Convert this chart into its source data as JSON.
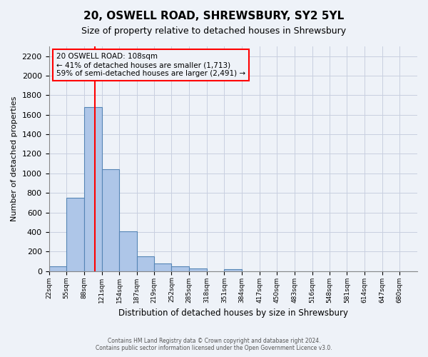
{
  "title": "20, OSWELL ROAD, SHREWSBURY, SY2 5YL",
  "subtitle": "Size of property relative to detached houses in Shrewsbury",
  "xlabel": "Distribution of detached houses by size in Shrewsbury",
  "ylabel": "Number of detached properties",
  "bin_labels": [
    "22sqm",
    "55sqm",
    "88sqm",
    "121sqm",
    "154sqm",
    "187sqm",
    "219sqm",
    "252sqm",
    "285sqm",
    "318sqm",
    "351sqm",
    "384sqm",
    "417sqm",
    "450sqm",
    "483sqm",
    "516sqm",
    "548sqm",
    "581sqm",
    "614sqm",
    "647sqm",
    "680sqm"
  ],
  "bar_heights": [
    50,
    750,
    1680,
    1040,
    405,
    150,
    80,
    45,
    30,
    0,
    20,
    0,
    0,
    0,
    0,
    0,
    0,
    0,
    0,
    0,
    0
  ],
  "bar_color": "#aec6e8",
  "bar_edge_color": "#5585b5",
  "ylim": [
    0,
    2300
  ],
  "yticks": [
    0,
    200,
    400,
    600,
    800,
    1000,
    1200,
    1400,
    1600,
    1800,
    2000,
    2200
  ],
  "property_size": 108,
  "pct_smaller": 41,
  "pct_smaller_count": 1713,
  "pct_larger": 59,
  "pct_larger_count": 2491,
  "red_line_x": 108,
  "bin_edges": [
    22,
    55,
    88,
    121,
    154,
    187,
    219,
    252,
    285,
    318,
    351,
    384,
    417,
    450,
    483,
    516,
    548,
    581,
    614,
    647,
    680,
    713
  ],
  "footer_line1": "Contains HM Land Registry data © Crown copyright and database right 2024.",
  "footer_line2": "Contains public sector information licensed under the Open Government Licence v3.0.",
  "background_color": "#eef2f8",
  "grid_color": "#c8cfe0"
}
